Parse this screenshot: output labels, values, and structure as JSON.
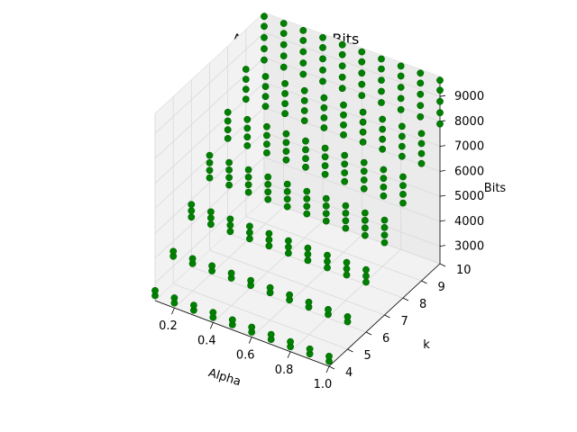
{
  "chart_data": {
    "type": "scatter",
    "projection": "3d",
    "title": "Alpha vs k vs Bits",
    "xlabel": "Alpha",
    "ylabel": "k",
    "zlabel": "Bits",
    "x_ticks": [
      "0.2",
      "0.4",
      "0.6",
      "0.8",
      "1.0"
    ],
    "y_ticks": [
      "4",
      "5",
      "6",
      "7",
      "8",
      "9",
      "10"
    ],
    "z_ticks": [
      "3000",
      "4000",
      "5000",
      "6000",
      "7000",
      "8000",
      "9000"
    ],
    "xlim": [
      0.1,
      1.0
    ],
    "ylim": [
      4,
      10
    ],
    "zlim": [
      2300,
      9800
    ],
    "grid": true,
    "marker_color": "#008000",
    "alpha_values": [
      0.1,
      0.2,
      0.3,
      0.4,
      0.5,
      0.6,
      0.7,
      0.8,
      0.9,
      1.0
    ],
    "k_values": [
      4,
      5,
      6,
      7,
      8,
      9,
      10
    ],
    "bits_per_k": {
      "4": [
        2500,
        2700
      ],
      "5": [
        3400,
        3600
      ],
      "6": [
        4300,
        4550,
        4800
      ],
      "7": [
        5200,
        5500,
        5800,
        6100
      ],
      "8": [
        6100,
        6450,
        6800,
        7150
      ],
      "9": [
        7000,
        7400,
        7800,
        8200
      ],
      "10": [
        7900,
        8350,
        8800,
        9250,
        9650
      ]
    }
  }
}
